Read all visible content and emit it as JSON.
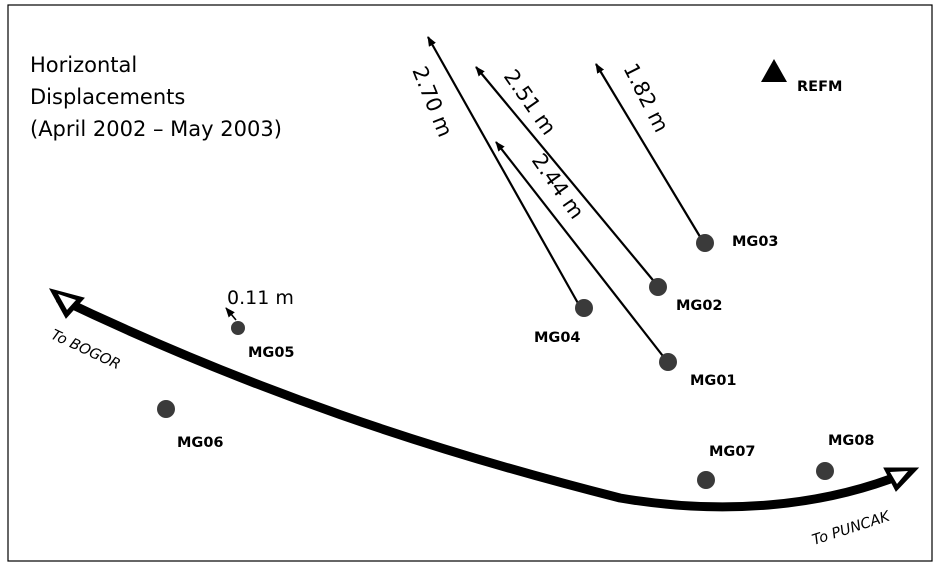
{
  "title": {
    "line1": "Horizontal",
    "line2": "Displacements",
    "line3": "(April 2002 – May 2003)"
  },
  "reference": {
    "label": "REFM"
  },
  "stations": [
    {
      "id": "MG01",
      "label": "MG01"
    },
    {
      "id": "MG02",
      "label": "MG02"
    },
    {
      "id": "MG03",
      "label": "MG03"
    },
    {
      "id": "MG04",
      "label": "MG04"
    },
    {
      "id": "MG05",
      "label": "MG05"
    },
    {
      "id": "MG06",
      "label": "MG06"
    },
    {
      "id": "MG07",
      "label": "MG07"
    },
    {
      "id": "MG08",
      "label": "MG08"
    }
  ],
  "displacements": [
    {
      "station": "MG04",
      "value_m": 2.7,
      "label": "2.70 m"
    },
    {
      "station": "MG02",
      "value_m": 2.51,
      "label": "2.51 m"
    },
    {
      "station": "MG01",
      "value_m": 2.44,
      "label": "2.44 m"
    },
    {
      "station": "MG03",
      "value_m": 1.82,
      "label": "1.82 m"
    },
    {
      "station": "MG05",
      "value_m": 0.11,
      "label": "0.11 m"
    }
  ],
  "road": {
    "west_label": "To BOGOR",
    "east_label": "To PUNCAK"
  }
}
